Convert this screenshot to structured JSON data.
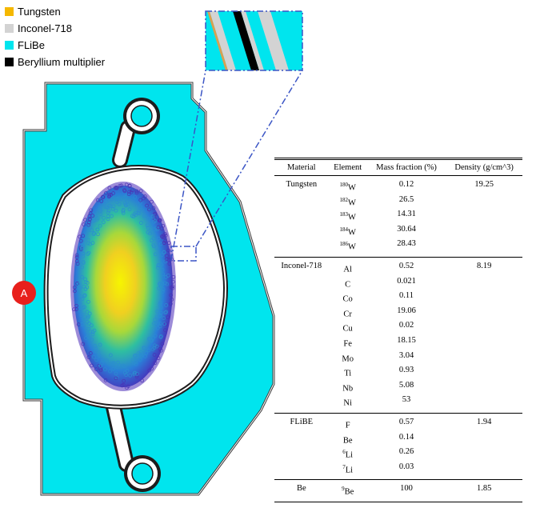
{
  "legend": {
    "items": [
      {
        "label": "Tungsten",
        "color": "#f5b800"
      },
      {
        "label": "Inconel-718",
        "color": "#d3d3d3"
      },
      {
        "label": "FLiBe",
        "color": "#00e5ee"
      },
      {
        "label": "Beryllium multiplier",
        "color": "#000000"
      }
    ]
  },
  "marker": {
    "label": "A",
    "color": "#e8201c"
  },
  "colors": {
    "flibe": "#00e5ee",
    "wall": "#1d1d1d",
    "inconel": "#d3d3d3",
    "tungsten": "#d9a050",
    "zoom_box": "#3b55c5"
  },
  "table": {
    "headers": {
      "material": "Material",
      "element": "Element",
      "mass_fraction": "Mass fraction (%)",
      "density": "Density (g/cm^3)"
    },
    "groups": [
      {
        "material": "Tungsten",
        "density": "19.25",
        "rows": [
          {
            "mass": "180",
            "sym": "W",
            "frac": "0.12"
          },
          {
            "mass": "182",
            "sym": "W",
            "frac": "26.5"
          },
          {
            "mass": "183",
            "sym": "W",
            "frac": "14.31"
          },
          {
            "mass": "184",
            "sym": "W",
            "frac": "30.64"
          },
          {
            "mass": "186",
            "sym": "W",
            "frac": "28.43"
          }
        ]
      },
      {
        "material": "Inconel-718",
        "density": "8.19",
        "rows": [
          {
            "mass": "",
            "sym": "Al",
            "frac": "0.52"
          },
          {
            "mass": "",
            "sym": "C",
            "frac": "0.021"
          },
          {
            "mass": "",
            "sym": "Co",
            "frac": "0.11"
          },
          {
            "mass": "",
            "sym": "Cr",
            "frac": "19.06"
          },
          {
            "mass": "",
            "sym": "Cu",
            "frac": "0.02"
          },
          {
            "mass": "",
            "sym": "Fe",
            "frac": "18.15"
          },
          {
            "mass": "",
            "sym": "Mo",
            "frac": "3.04"
          },
          {
            "mass": "",
            "sym": "Ti",
            "frac": "0.93"
          },
          {
            "mass": "",
            "sym": "Nb",
            "frac": "5.08"
          },
          {
            "mass": "",
            "sym": "Ni",
            "frac": "53"
          }
        ]
      },
      {
        "material": "FLiBE",
        "density": "1.94",
        "rows": [
          {
            "mass": "",
            "sym": "F",
            "frac": "0.57"
          },
          {
            "mass": "",
            "sym": "Be",
            "frac": "0.14"
          },
          {
            "mass": "6",
            "sym": "Li",
            "frac": "0.26"
          },
          {
            "mass": "7",
            "sym": "Li",
            "frac": "0.03"
          }
        ]
      },
      {
        "material": "Be",
        "density": "1.85",
        "rows": [
          {
            "mass": "9",
            "sym": "Be",
            "frac": "100"
          }
        ]
      }
    ]
  }
}
